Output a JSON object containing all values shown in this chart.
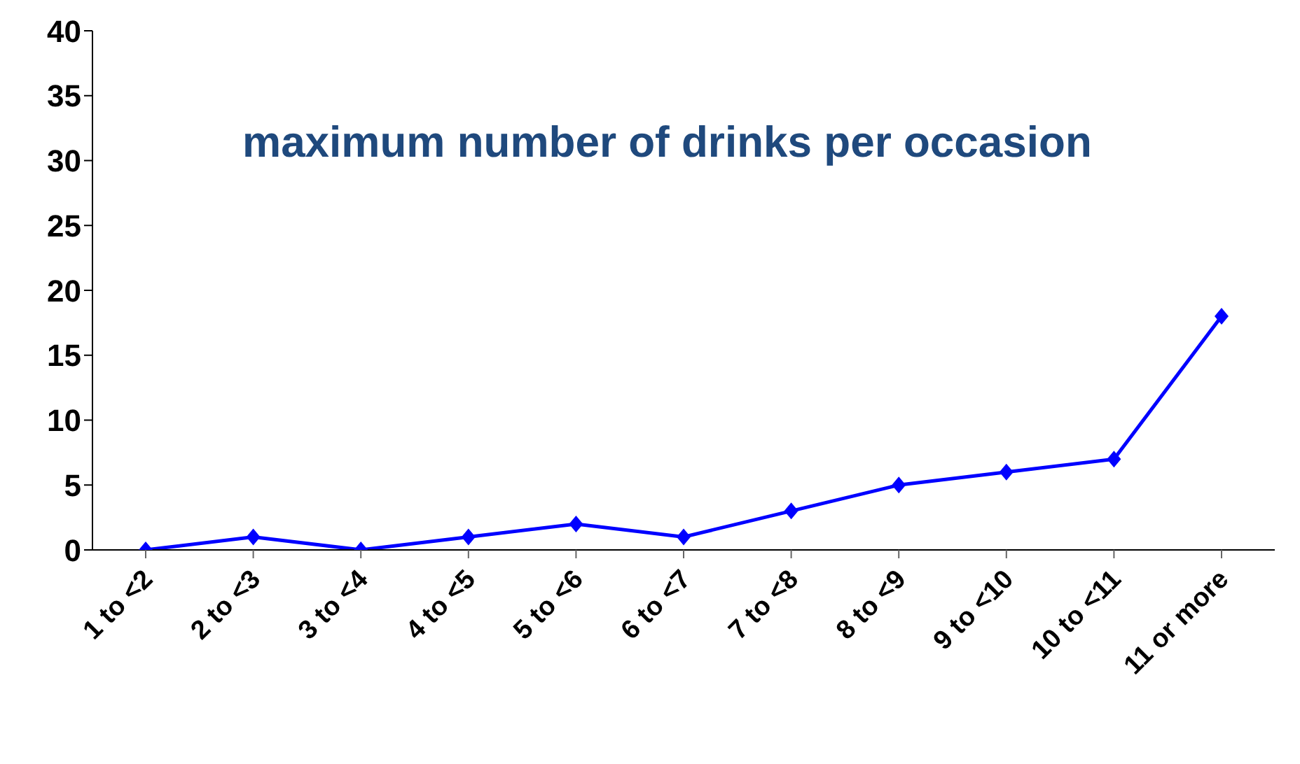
{
  "chart_data": {
    "type": "line",
    "title": "maximum number of drinks per occasion",
    "categories": [
      "1 to <2",
      "2 to <3",
      "3 to <4",
      "4 to <5",
      "5 to <6",
      "6 to <7",
      "7 to <8",
      "8 to <9",
      "9 to <10",
      "10 to <11",
      "11 or more"
    ],
    "series": [
      {
        "color": "#0000ff",
        "values": [
          0,
          1,
          0,
          1,
          2,
          1,
          3,
          5,
          6,
          7,
          18
        ]
      }
    ],
    "ylim": [
      0,
      40
    ],
    "yticks": [
      0,
      5,
      10,
      15,
      20,
      25,
      30,
      35,
      40
    ],
    "grid": false,
    "legend": false,
    "marker": "diamond",
    "line_style": "solid"
  }
}
